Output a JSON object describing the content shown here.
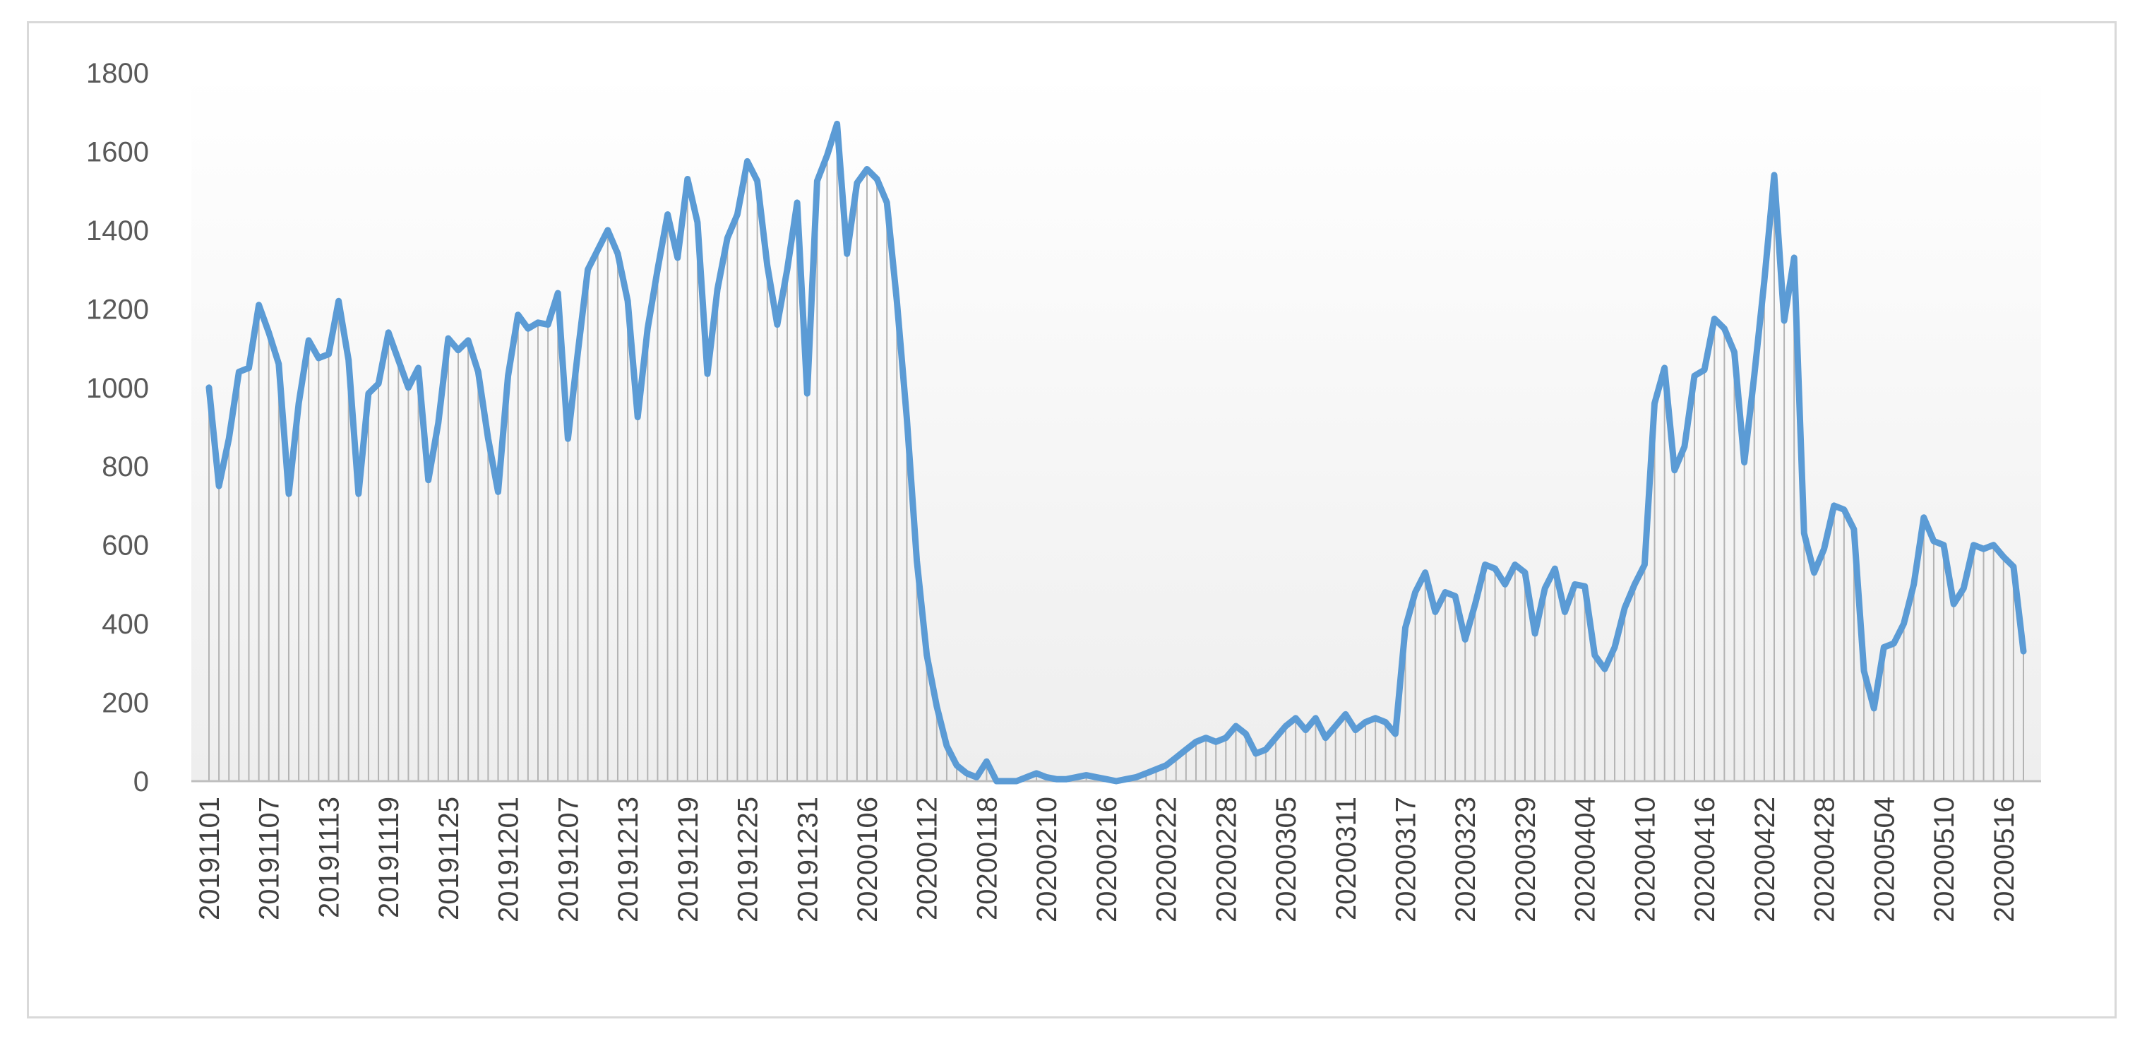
{
  "chart_data": {
    "type": "area",
    "title": "",
    "xlabel": "",
    "ylabel": "",
    "ylim": [
      0,
      1800
    ],
    "yticks": [
      0,
      200,
      400,
      600,
      800,
      1000,
      1200,
      1400,
      1600,
      1800
    ],
    "grid": false,
    "legend": "none",
    "x_tick_labels": [
      "20191101",
      "20191107",
      "20191113",
      "20191119",
      "20191125",
      "20191201",
      "20191207",
      "20191213",
      "20191219",
      "20191225",
      "20191231",
      "20200106",
      "20200112",
      "20200118",
      "20200210",
      "20200216",
      "20200222",
      "20200228",
      "20200305",
      "20200311",
      "20200317",
      "20200323",
      "20200329",
      "20200404",
      "20200410",
      "20200416",
      "20200422",
      "20200428",
      "20200504",
      "20200510",
      "20200516"
    ],
    "series": [
      {
        "name": "",
        "color": "#5b9bd5",
        "values": [
          1000,
          750,
          870,
          1040,
          1050,
          1210,
          1140,
          1060,
          730,
          960,
          1120,
          1075,
          1085,
          1220,
          1070,
          730,
          985,
          1010,
          1140,
          1070,
          1000,
          1050,
          765,
          910,
          1125,
          1095,
          1120,
          1040,
          870,
          735,
          1030,
          1185,
          1150,
          1165,
          1160,
          1240,
          870,
          1090,
          1300,
          1350,
          1400,
          1340,
          1220,
          925,
          1150,
          1300,
          1440,
          1330,
          1530,
          1420,
          1035,
          1250,
          1380,
          1440,
          1575,
          1525,
          1310,
          1160,
          1300,
          1470,
          985,
          1525,
          1590,
          1670,
          1340,
          1520,
          1555,
          1530,
          1470,
          1220,
          920,
          560,
          320,
          190,
          90,
          40,
          20,
          10,
          50,
          0,
          0,
          0,
          10,
          20,
          10,
          5,
          5,
          10,
          15,
          10,
          5,
          0,
          5,
          10,
          20,
          30,
          40,
          60,
          80,
          100,
          110,
          100,
          110,
          140,
          120,
          70,
          80,
          110,
          140,
          160,
          130,
          160,
          110,
          140,
          170,
          130,
          150,
          160,
          150,
          120,
          390,
          480,
          530,
          430,
          480,
          470,
          360,
          450,
          550,
          540,
          500,
          550,
          530,
          375,
          490,
          540,
          430,
          500,
          495,
          320,
          285,
          340,
          440,
          500,
          550,
          960,
          1050,
          790,
          850,
          1030,
          1045,
          1175,
          1150,
          1090,
          810,
          1030,
          1270,
          1540,
          1170,
          1330,
          630,
          530,
          590,
          700,
          690,
          640,
          280,
          185,
          340,
          350,
          400,
          500,
          670,
          610,
          600,
          450,
          490,
          600,
          590,
          600,
          570,
          545,
          330
        ]
      }
    ]
  }
}
